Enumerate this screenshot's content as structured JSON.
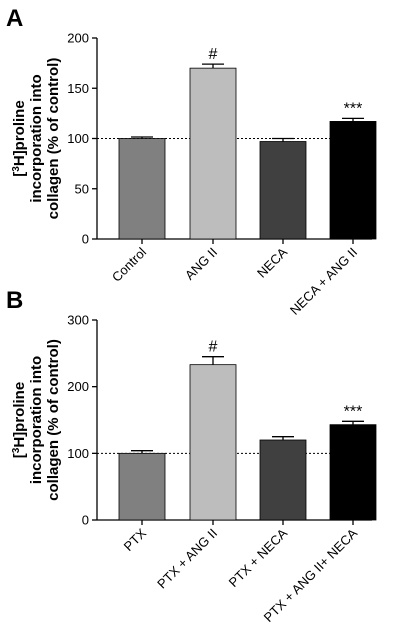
{
  "chart_data": [
    {
      "type": "bar",
      "panel": "A",
      "title": "",
      "ylabel_lines": [
        "[3H]proline",
        "incorporation into",
        "collagen (% of control)"
      ],
      "ylim": [
        0,
        200
      ],
      "yticks": [
        0,
        50,
        100,
        150,
        200
      ],
      "categories": [
        "Control",
        "ANG II",
        "NECA",
        "NECA + ANG II"
      ],
      "values": [
        100,
        170,
        97,
        117
      ],
      "errors": [
        1.5,
        4,
        3,
        3
      ],
      "colors": [
        "#808080",
        "#bdbdbd",
        "#404040",
        "#000000"
      ],
      "annotations": [
        "",
        "#",
        "",
        "***"
      ],
      "reference_line": 100
    },
    {
      "type": "bar",
      "panel": "B",
      "title": "",
      "ylabel_lines": [
        "[3H]proline",
        "incorporation into",
        "collagen (% of control)"
      ],
      "ylim": [
        0,
        300
      ],
      "yticks": [
        0,
        100,
        200,
        300
      ],
      "categories": [
        "PTX",
        "PTX + ANG II",
        "PTX + NECA",
        "PTX + ANG II+ NECA"
      ],
      "values": [
        100,
        233,
        120,
        143
      ],
      "errors": [
        4,
        12,
        5,
        5
      ],
      "colors": [
        "#808080",
        "#bdbdbd",
        "#404040",
        "#000000"
      ],
      "annotations": [
        "",
        "#",
        "",
        "***"
      ],
      "reference_line": 100
    }
  ]
}
